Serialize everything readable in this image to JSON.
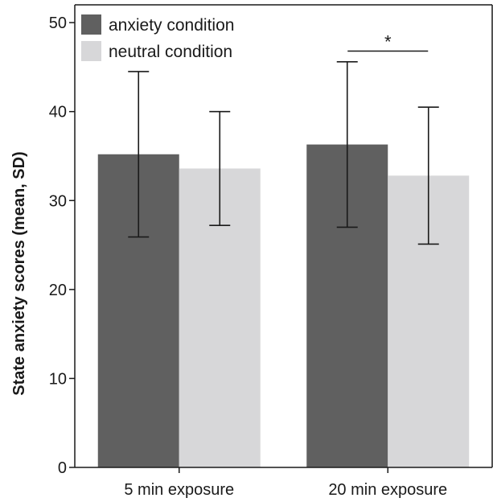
{
  "chart_data": {
    "type": "bar",
    "title": "",
    "xlabel": "",
    "ylabel": "State anxiety scores (mean, SD)",
    "ylim": [
      0,
      52
    ],
    "yticks": [
      0,
      10,
      20,
      30,
      40,
      50
    ],
    "categories": [
      "5 min exposure",
      "20 min exposure"
    ],
    "series": [
      {
        "name": "anxiety condition",
        "color": "#606060",
        "values": [
          35.2,
          36.3
        ],
        "sd": [
          9.3,
          9.3
        ]
      },
      {
        "name": "neutral condition",
        "color": "#d7d7d9",
        "values": [
          33.6,
          32.8
        ],
        "sd": [
          6.4,
          7.7
        ]
      }
    ],
    "legend_position": "top-left",
    "grid": false,
    "annotations": [
      {
        "text": "*",
        "category": "20 min exposure",
        "y": 46.8
      }
    ]
  }
}
